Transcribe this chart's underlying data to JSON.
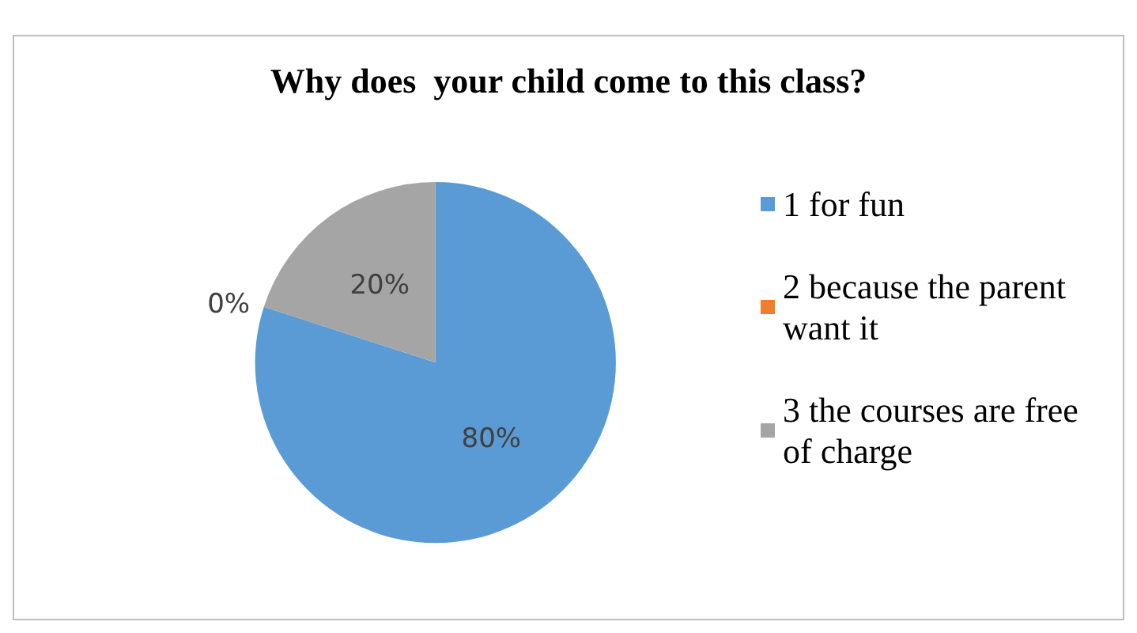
{
  "chart_data": {
    "type": "pie",
    "title": "Why does  your child come to this class?",
    "categories": [
      "1 for fun",
      "2 because the parent want it",
      "3 the courses are free of charge"
    ],
    "values": [
      80,
      0,
      20
    ],
    "colors": [
      "#5b9bd5",
      "#ed7d31",
      "#a5a5a5"
    ],
    "value_labels": [
      "80%",
      "0%",
      "20%"
    ],
    "legend": "right"
  }
}
